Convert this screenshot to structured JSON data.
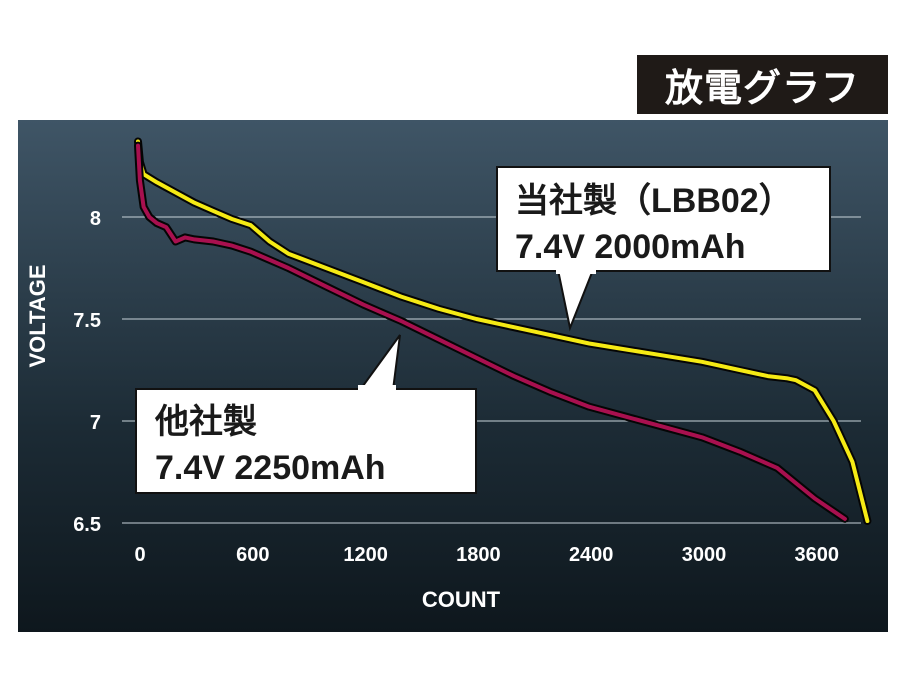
{
  "title_badge": "放電グラフ",
  "chart_data": {
    "type": "line",
    "xlabel": "COUNT",
    "ylabel": "VOLTAGE",
    "xlim": [
      0,
      3900
    ],
    "ylim": [
      6.5,
      8.5
    ],
    "x_ticks": [
      "0",
      "600",
      "1200",
      "1800",
      "2400",
      "3000",
      "3600"
    ],
    "x_tick_values": [
      0,
      600,
      1200,
      1800,
      2400,
      3000,
      3600
    ],
    "y_ticks": [
      "8",
      "7.5",
      "7",
      "6.5"
    ],
    "y_tick_values": [
      8,
      7.5,
      7,
      6.5
    ],
    "grid": true,
    "series": [
      {
        "label_line1": "当社製（LBB02）",
        "label_line2": "7.4V 2000mAh",
        "color": "#f5ea14",
        "x": [
          0,
          10,
          30,
          100,
          200,
          300,
          400,
          500,
          600,
          700,
          800,
          1000,
          1200,
          1400,
          1600,
          1800,
          2000,
          2200,
          2400,
          2600,
          2800,
          3000,
          3200,
          3350,
          3450,
          3500,
          3600,
          3700,
          3800,
          3880
        ],
        "y": [
          8.37,
          8.27,
          8.21,
          8.17,
          8.12,
          8.07,
          8.03,
          7.99,
          7.96,
          7.88,
          7.82,
          7.75,
          7.68,
          7.61,
          7.55,
          7.5,
          7.46,
          7.42,
          7.38,
          7.35,
          7.32,
          7.29,
          7.25,
          7.22,
          7.21,
          7.2,
          7.15,
          7.0,
          6.8,
          6.51
        ]
      },
      {
        "label_line1": "他社製",
        "label_line2": "7.4V 2250mAh",
        "color": "#a8104f",
        "x": [
          0,
          10,
          30,
          60,
          100,
          150,
          200,
          250,
          300,
          400,
          500,
          600,
          800,
          1000,
          1200,
          1400,
          1600,
          1800,
          2000,
          2200,
          2400,
          2600,
          2800,
          3000,
          3200,
          3400,
          3600,
          3760
        ],
        "y": [
          8.35,
          8.18,
          8.05,
          8.0,
          7.97,
          7.95,
          7.88,
          7.9,
          7.89,
          7.88,
          7.86,
          7.83,
          7.75,
          7.66,
          7.57,
          7.49,
          7.4,
          7.31,
          7.22,
          7.14,
          7.07,
          7.02,
          6.97,
          6.92,
          6.85,
          6.77,
          6.62,
          6.52
        ]
      }
    ]
  }
}
